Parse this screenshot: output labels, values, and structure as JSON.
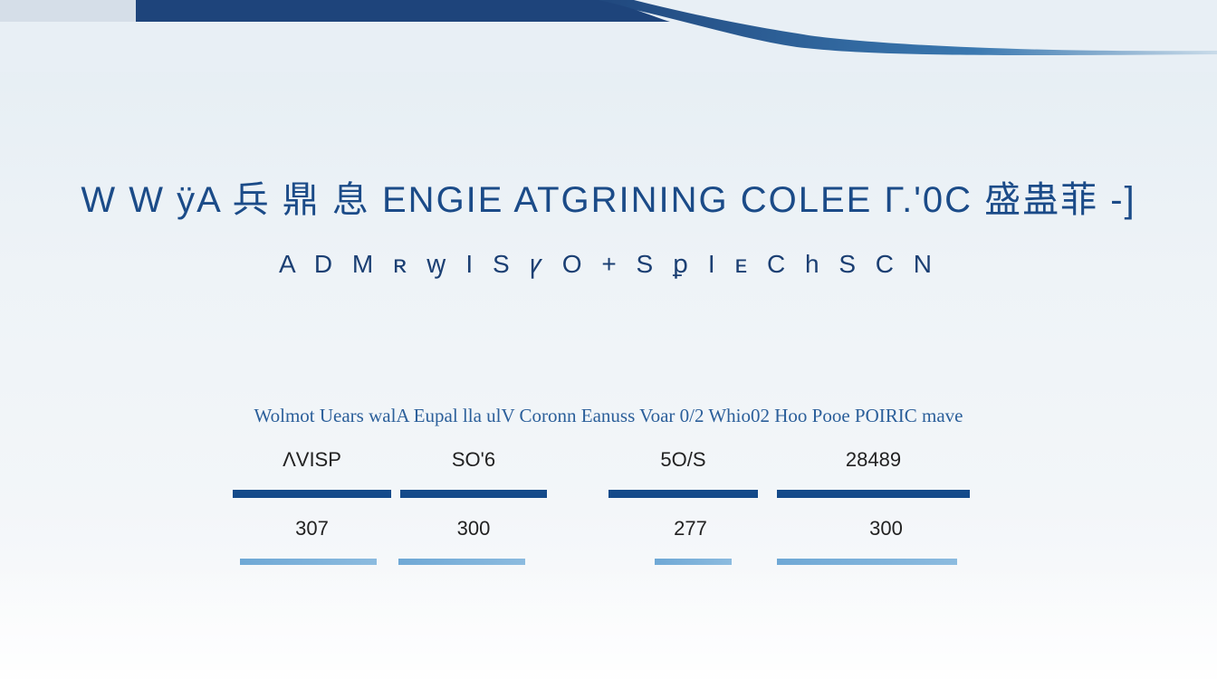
{
  "colors": {
    "accent": "#1b4b88",
    "bar_dark": "#144a8a",
    "bar_light": "#6aa8d6"
  },
  "title": "W W ÿA 兵 鼎 息 ENGIE ATGRINING  COLEE Γ.'0C 盛蛊菲 -]",
  "subtitle": "A D M ʀ ꝡ I S ꝩ O +  S ꝑ I ᴇ C h S  C N",
  "table": {
    "header": "Wolmot  Uears  walA  Eupal lla  ulV Coronn  Eanuss  Voar 0/2  Whio02  Hoo Pooe  POIRIC  mave",
    "row1": [
      "ΛVISP",
      "SO'6",
      "5O/S",
      "28489"
    ],
    "row2": [
      "307",
      "300",
      "277",
      "300"
    ]
  }
}
